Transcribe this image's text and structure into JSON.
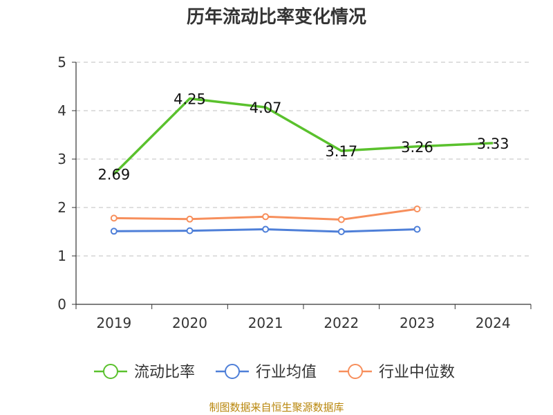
{
  "chart_data": {
    "type": "line",
    "title": "历年流动比率变化情况",
    "categories": [
      "2019",
      "2020",
      "2021",
      "2022",
      "2023",
      "2024"
    ],
    "ylim": [
      0,
      5
    ],
    "yticks": [
      0,
      1,
      2,
      3,
      4,
      5
    ],
    "grid": true,
    "legend_position": "bottom",
    "series": [
      {
        "name": "流动比率",
        "color": "#5ac12d",
        "values": [
          2.69,
          4.25,
          4.07,
          3.17,
          3.26,
          3.33
        ],
        "labels": [
          "2.69",
          "4.25",
          "4.07",
          "3.17",
          "3.26",
          "3.33"
        ]
      },
      {
        "name": "行业均值",
        "color": "#4e7fd8",
        "values": [
          1.51,
          1.52,
          1.55,
          1.5,
          1.55,
          null
        ]
      },
      {
        "name": "行业中位数",
        "color": "#f78f5c",
        "values": [
          1.78,
          1.76,
          1.81,
          1.75,
          1.97,
          null
        ]
      }
    ]
  },
  "source": "制图数据来自恒生聚源数据库"
}
